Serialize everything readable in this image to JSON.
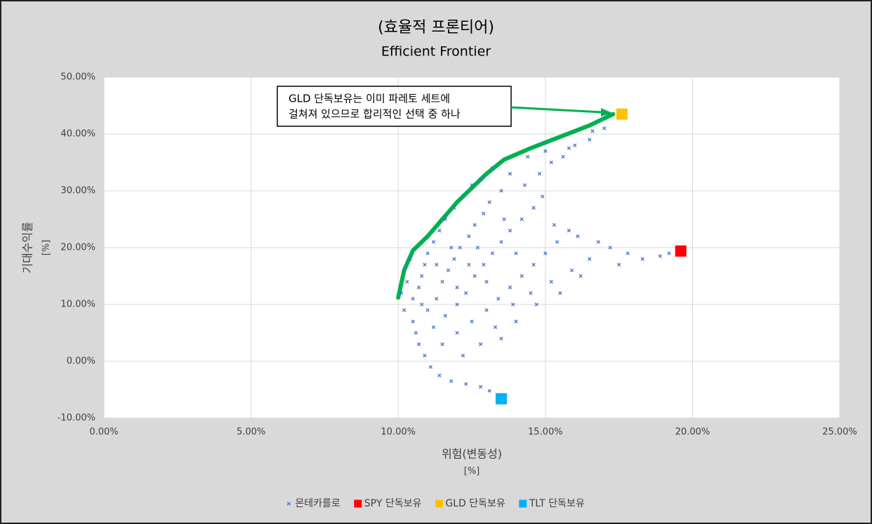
{
  "chart_data": {
    "type": "scatter",
    "title": "(효율적 프론티어)",
    "subtitle": "Efficient Frontier",
    "xlabel": "위험(변동성)",
    "xunit": "[%]",
    "ylabel": "기대수익률",
    "yunit": "[%]",
    "xlim": [
      0,
      25
    ],
    "xticks": [
      {
        "value": 0,
        "label": "0.00%"
      },
      {
        "value": 5,
        "label": "5.00%"
      },
      {
        "value": 10,
        "label": "10.00%"
      },
      {
        "value": 15,
        "label": "15.00%"
      },
      {
        "value": 20,
        "label": "20.00%"
      },
      {
        "value": 25,
        "label": "25.00%"
      }
    ],
    "ylim": [
      -10,
      50
    ],
    "yticks": [
      {
        "value": -10,
        "label": "-10.00%"
      },
      {
        "value": 0,
        "label": "0.00%"
      },
      {
        "value": 10,
        "label": "10.00%"
      },
      {
        "value": 20,
        "label": "20.00%"
      },
      {
        "value": 30,
        "label": "30.00%"
      },
      {
        "value": 40,
        "label": "40.00%"
      },
      {
        "value": 50,
        "label": "50.00%"
      }
    ],
    "grid": true,
    "legend": "bottom",
    "series": [
      {
        "name": "몬테카를로",
        "color": "#4472c4",
        "marker": "x",
        "x": [
          10.1,
          10.2,
          10.3,
          10.2,
          10.4,
          10.5,
          10.6,
          10.7,
          10.9,
          11.1,
          11.4,
          11.8,
          12.3,
          12.8,
          13.1,
          10.5,
          10.7,
          10.8,
          10.9,
          11.0,
          11.2,
          11.4,
          11.6,
          11.9,
          12.2,
          12.5,
          12.8,
          13.2,
          11.0,
          11.3,
          11.5,
          11.7,
          11.9,
          12.1,
          12.4,
          12.6,
          12.9,
          13.1,
          13.5,
          13.8,
          11.2,
          11.6,
          12.0,
          12.3,
          12.6,
          12.9,
          13.2,
          13.5,
          13.8,
          14.2,
          14.6,
          14.9,
          11.5,
          12.0,
          12.5,
          13.0,
          13.4,
          13.8,
          14.2,
          14.6,
          15.0,
          15.4,
          15.8,
          14.3,
          14.8,
          15.2,
          15.6,
          16.0,
          16.5,
          17.0,
          12.2,
          12.8,
          13.3,
          13.9,
          14.5,
          15.2,
          15.9,
          16.5,
          17.2,
          17.8,
          18.3,
          18.9,
          19.2,
          15.3,
          16.1,
          16.8,
          17.5,
          16.2,
          15.5,
          14.7,
          14.0,
          13.5,
          14.4,
          15.0,
          15.8,
          16.6,
          13.0,
          12.0,
          11.8,
          12.7,
          13.6,
          14.0,
          12.4,
          11.3,
          10.8
        ],
        "y": [
          12,
          9,
          14,
          16,
          18,
          7,
          5,
          3,
          1,
          -1,
          -2.5,
          -3.5,
          -4,
          -4.5,
          -5.2,
          11,
          13,
          15,
          17,
          19,
          21,
          23,
          25,
          27,
          29,
          31,
          32,
          34,
          9,
          11,
          14,
          16,
          18,
          20,
          22,
          24,
          26,
          28,
          30,
          33,
          6,
          8,
          10,
          12,
          15,
          17,
          19,
          21,
          23,
          25,
          27,
          29,
          3,
          5,
          7,
          9,
          11,
          13,
          15,
          17,
          19,
          21,
          23,
          31,
          33,
          35,
          36,
          38,
          39,
          41,
          1,
          3,
          6,
          10,
          12,
          14,
          16,
          18,
          20,
          19,
          18,
          18.5,
          19,
          24,
          22,
          21,
          17,
          15,
          12,
          10,
          7,
          4,
          36,
          37,
          37.5,
          40.5,
          14,
          13,
          20,
          20,
          25,
          19,
          17,
          17,
          10
        ]
      },
      {
        "name": "SPY 단독보유",
        "color": "#ff0000",
        "marker": "square",
        "x": [
          19.6
        ],
        "y": [
          19.4
        ]
      },
      {
        "name": "GLD 단독보유",
        "color": "#ffc000",
        "marker": "square",
        "x": [
          17.6
        ],
        "y": [
          43.5
        ]
      },
      {
        "name": "TLT 단독보유",
        "color": "#00b0f0",
        "marker": "square",
        "x": [
          13.5
        ],
        "y": [
          -6.6
        ]
      }
    ],
    "frontier": {
      "color": "#00b050",
      "x": [
        10.0,
        10.2,
        10.5,
        11.0,
        11.5,
        12.0,
        13.0,
        13.6,
        14.5,
        15.5,
        16.5,
        17.3
      ],
      "y": [
        11.2,
        16,
        19.5,
        22,
        25,
        28,
        33,
        35.5,
        37.5,
        39.5,
        41.5,
        43.5
      ]
    },
    "annotation": {
      "lines": [
        "GLD 단독보유는 이미 파레토 세트에",
        "걸쳐져 있으므로 합리적인 선택 중 하나"
      ]
    }
  }
}
